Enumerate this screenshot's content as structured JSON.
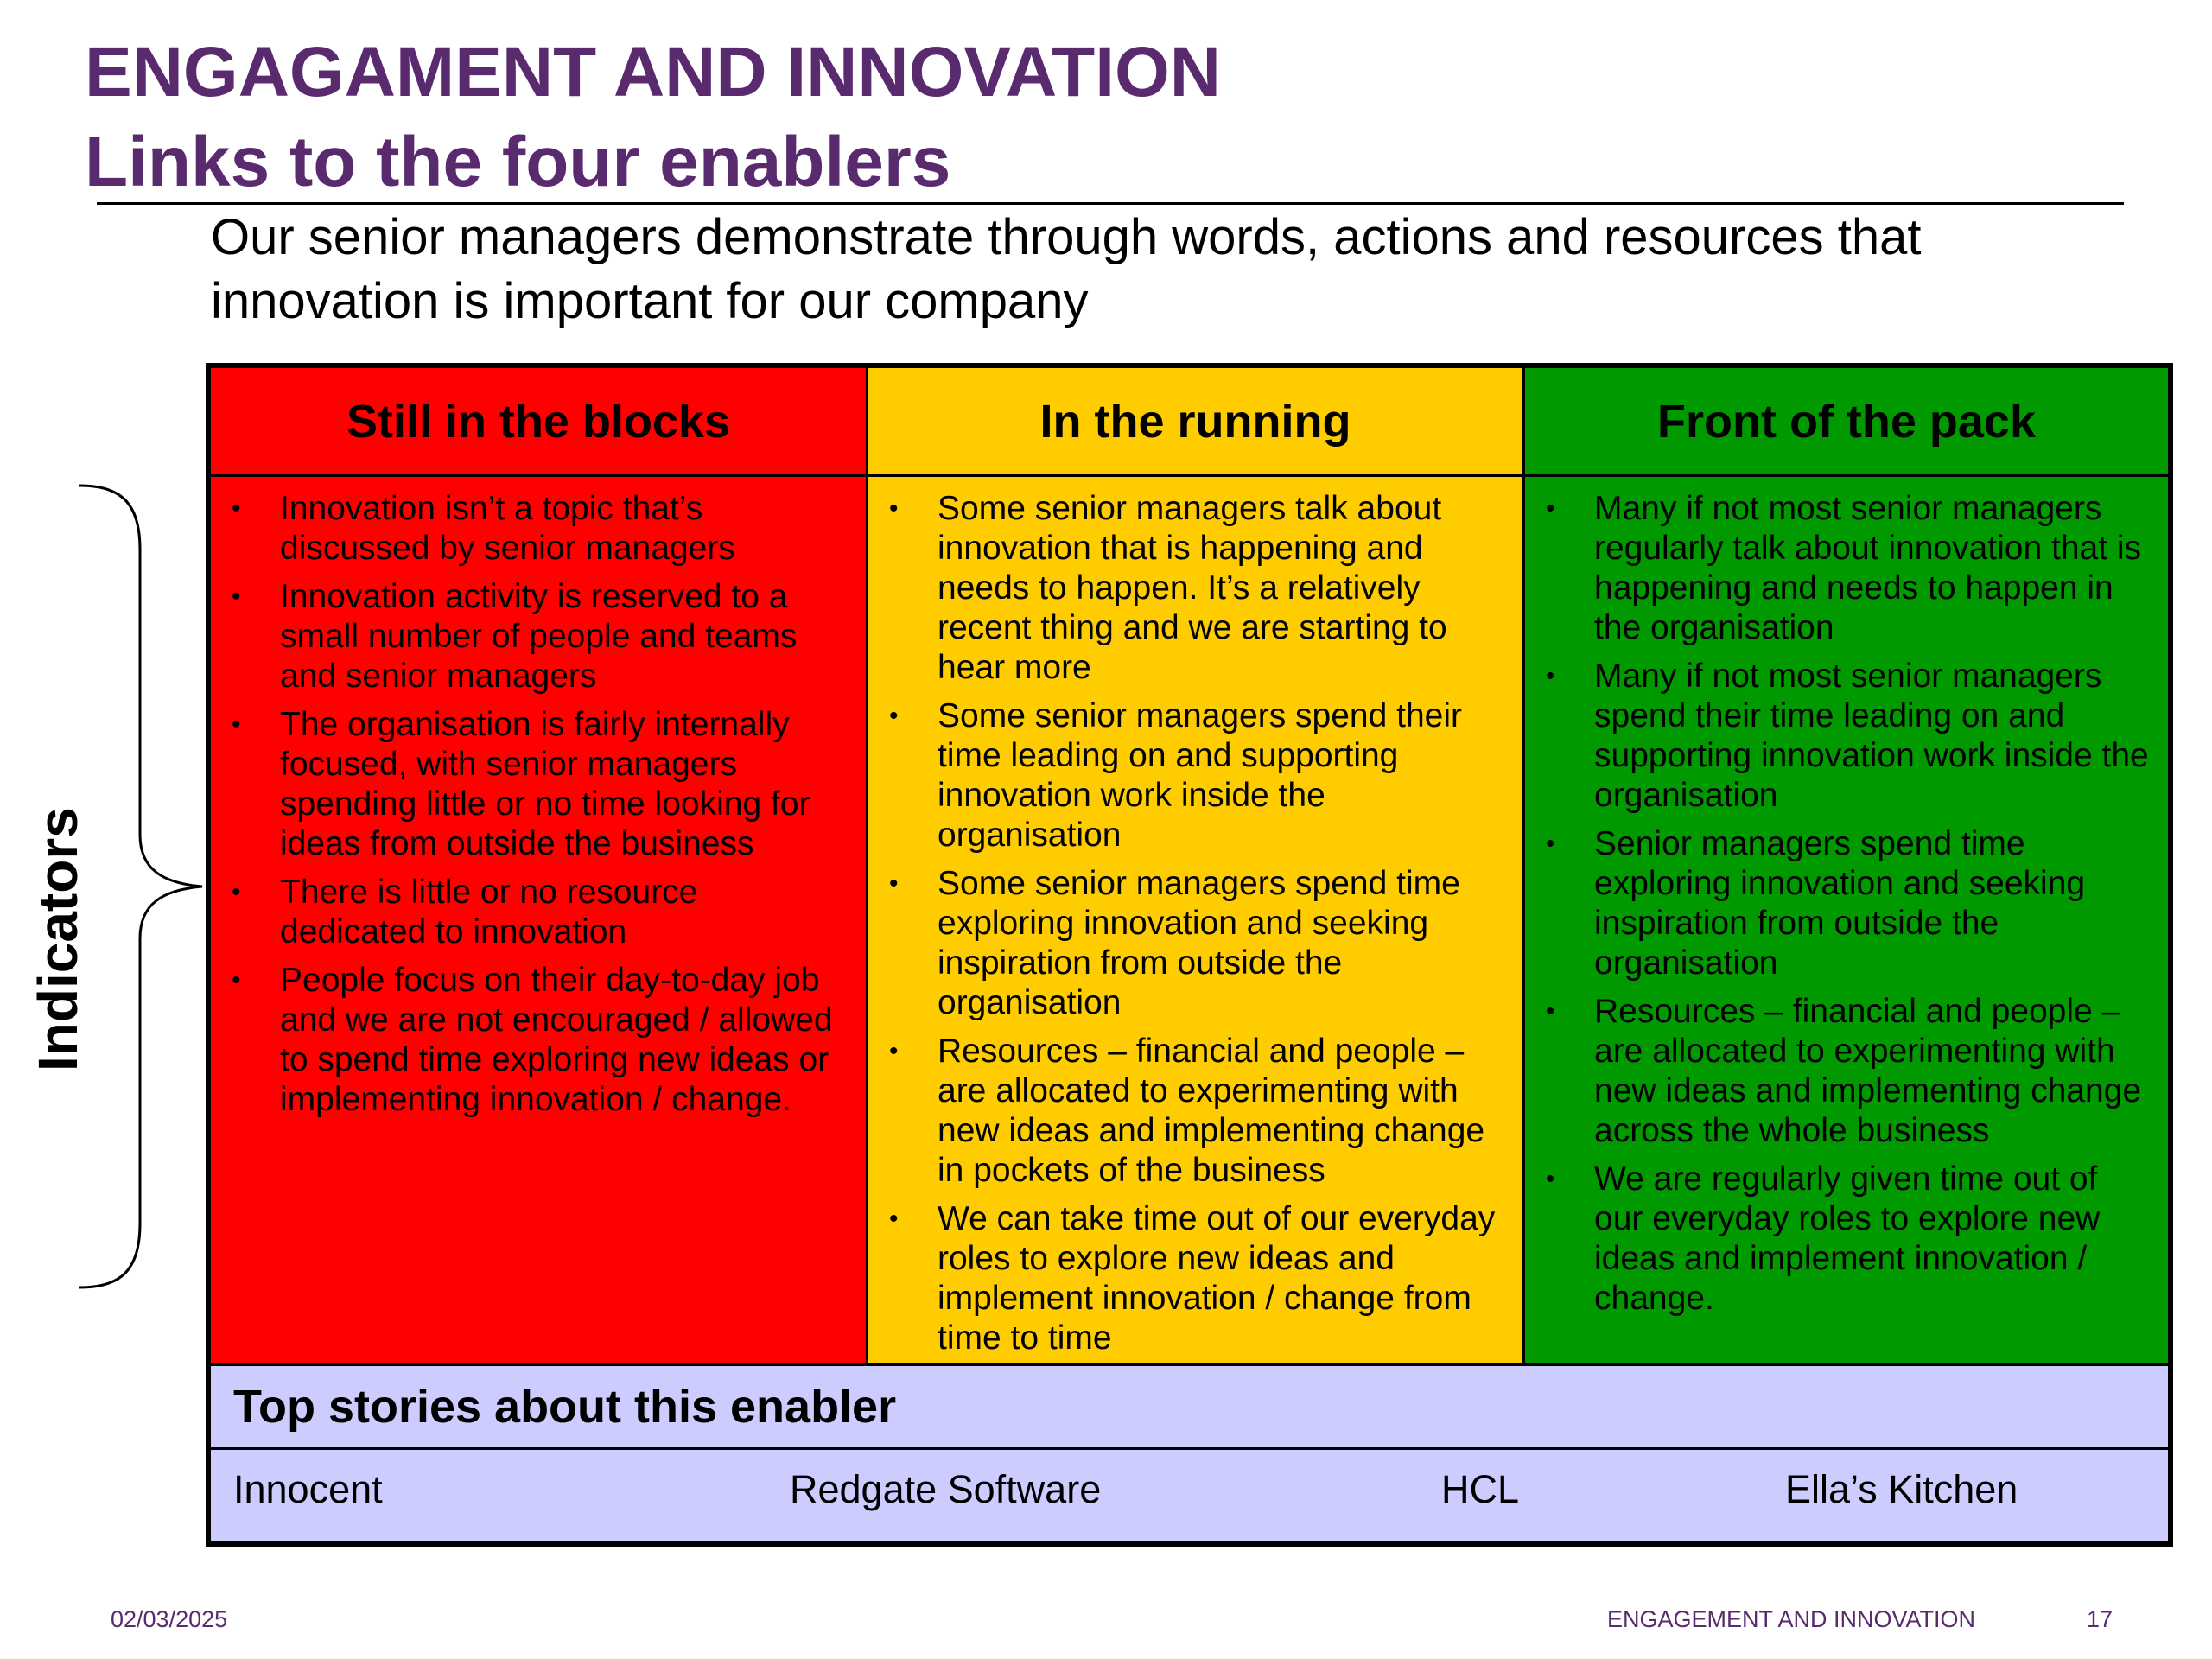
{
  "title": {
    "line1": "ENGAGAMENT AND INNOVATION",
    "line2": "Links to the four enablers"
  },
  "subtitle": "Our senior managers demonstrate through words, actions and resources that innovation is important for our company",
  "indicators_label": "Indicators",
  "colors": {
    "title": "#5a2a6e",
    "red": "#ff0000",
    "yellow": "#ffcc00",
    "green": "#009900",
    "stories_bg": "#ccccff"
  },
  "columns": [
    {
      "header": "Still in the blocks",
      "bullets": [
        "Innovation isn’t a topic that’s discussed by senior managers",
        "Innovation activity is reserved to a small number of people and teams and senior managers",
        "The organisation is fairly internally focused, with senior managers spending little or no time looking for ideas from outside the business",
        "There is little or no resource dedicated to innovation",
        "People focus on their day-to-day job and we are not encouraged / allowed to spend time exploring new ideas or implementing innovation / change."
      ]
    },
    {
      "header": "In the running",
      "bullets": [
        "Some senior managers talk about innovation that is happening and needs to happen. It’s a relatively recent thing and we are starting to hear more",
        "Some senior managers spend their time leading on and supporting innovation work inside the organisation",
        "Some senior managers spend time exploring innovation and seeking inspiration from outside the organisation",
        "Resources – financial and people – are allocated to experimenting with new ideas and implementing change in pockets of the business",
        "We can take time out of our everyday roles to explore new ideas and implement innovation / change from time to time"
      ]
    },
    {
      "header": "Front of the pack",
      "bullets": [
        "Many if not most senior managers regularly talk about  innovation that is happening and needs to happen in the organisation",
        "Many if not most senior managers spend their time leading on and supporting innovation work inside the organisation",
        "Senior managers spend time exploring innovation and seeking inspiration from outside the organisation",
        "Resources – financial and people – are allocated to experimenting with new ideas and implementing change across the whole business",
        "We are regularly  given time out of our everyday roles to explore new ideas and implement innovation / change."
      ]
    }
  ],
  "stories": {
    "title": "Top stories about this enabler",
    "items": [
      "Innocent",
      "Redgate Software",
      "HCL",
      "Ella’s Kitchen"
    ]
  },
  "footer": {
    "date": "02/03/2025",
    "title": "ENGAGEMENT AND INNOVATION",
    "page": "17"
  }
}
